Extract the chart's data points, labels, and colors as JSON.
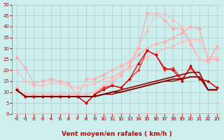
{
  "xlabel": "Vent moyen/en rafales ( km/h )",
  "xlim": [
    -0.5,
    23.5
  ],
  "ylim": [
    0,
    50
  ],
  "yticks": [
    0,
    5,
    10,
    15,
    20,
    25,
    30,
    35,
    40,
    45,
    50
  ],
  "xticks": [
    0,
    1,
    2,
    3,
    4,
    5,
    6,
    7,
    8,
    9,
    10,
    11,
    12,
    13,
    14,
    15,
    16,
    17,
    18,
    19,
    20,
    21,
    22,
    23
  ],
  "bg_color": "#cceeed",
  "grid_color": "#aacccc",
  "lines": [
    {
      "x": [
        0,
        1,
        2,
        3,
        4,
        5,
        6,
        7,
        8,
        9,
        10,
        11,
        12,
        13,
        14,
        15,
        16,
        17,
        18,
        19,
        20,
        21,
        22,
        23
      ],
      "y": [
        12,
        9,
        9,
        9,
        9,
        9,
        9,
        9,
        9,
        10,
        12,
        14,
        18,
        22,
        30,
        46,
        46,
        43,
        39,
        39,
        32,
        25,
        24,
        31
      ],
      "color": "#ffaaaa",
      "lw": 0.8,
      "marker": "D",
      "ms": 2.0
    },
    {
      "x": [
        0,
        1,
        2,
        3,
        4,
        5,
        6,
        7,
        8,
        9,
        10,
        11,
        12,
        13,
        14,
        15,
        16,
        17,
        18,
        19,
        20,
        21,
        22,
        23
      ],
      "y": [
        12,
        9,
        9,
        9,
        9,
        9,
        9,
        9,
        9,
        10,
        13,
        16,
        19,
        24,
        31,
        38,
        46,
        46,
        43,
        40,
        33,
        25,
        24,
        30
      ],
      "color": "#ffbbbb",
      "lw": 0.8,
      "marker": "D",
      "ms": 1.8
    },
    {
      "x": [
        0,
        1,
        2,
        3,
        4,
        5,
        6,
        7,
        8,
        9,
        10,
        11,
        12,
        13,
        14,
        15,
        16,
        17,
        18,
        19,
        20,
        21,
        22,
        23
      ],
      "y": [
        26,
        21,
        14,
        15,
        16,
        15,
        14,
        8,
        16,
        16,
        18,
        20,
        22,
        24,
        27,
        30,
        32,
        33,
        35,
        37,
        40,
        39,
        25,
        25
      ],
      "color": "#ffaaaa",
      "lw": 0.9,
      "marker": "D",
      "ms": 2.0
    },
    {
      "x": [
        0,
        1,
        2,
        3,
        4,
        5,
        6,
        7,
        8,
        9,
        10,
        11,
        12,
        13,
        14,
        15,
        16,
        17,
        18,
        19,
        20,
        21,
        22,
        23
      ],
      "y": [
        20,
        15,
        13,
        13,
        14,
        14,
        13,
        12,
        13,
        14,
        16,
        17,
        19,
        21,
        23,
        26,
        28,
        30,
        31,
        33,
        34,
        34,
        26,
        26
      ],
      "color": "#ffbbbb",
      "lw": 0.9,
      "marker": "D",
      "ms": 1.8
    },
    {
      "x": [
        0,
        1,
        2,
        3,
        4,
        5,
        6,
        7,
        8,
        9,
        10,
        11,
        12,
        13,
        14,
        15,
        16,
        17,
        18,
        19,
        20,
        21,
        22,
        23
      ],
      "y": [
        11,
        8,
        8,
        8,
        8,
        8,
        8,
        8,
        5,
        9,
        12,
        13,
        12,
        16,
        20,
        29,
        27,
        20,
        21,
        16,
        21,
        16,
        15,
        12
      ],
      "color": "#ff2222",
      "lw": 0.9,
      "marker": "+",
      "ms": 3.0
    },
    {
      "x": [
        0,
        1,
        2,
        3,
        4,
        5,
        6,
        7,
        8,
        9,
        10,
        11,
        12,
        13,
        14,
        15,
        16,
        17,
        18,
        19,
        20,
        21,
        22,
        23
      ],
      "y": [
        11,
        8,
        8,
        8,
        8,
        8,
        8,
        8,
        5,
        9,
        11,
        13,
        12,
        16,
        23,
        29,
        27,
        21,
        20,
        15,
        22,
        16,
        15,
        12
      ],
      "color": "#cc0000",
      "lw": 0.9,
      "marker": "s",
      "ms": 2.0
    },
    {
      "x": [
        0,
        1,
        2,
        3,
        4,
        5,
        6,
        7,
        8,
        9,
        10,
        11,
        12,
        13,
        14,
        15,
        16,
        17,
        18,
        19,
        20,
        21,
        22,
        23
      ],
      "y": [
        11,
        8,
        8,
        8,
        8,
        8,
        8,
        8,
        8,
        8,
        9,
        10,
        11,
        12,
        13,
        14,
        15,
        16,
        17,
        18,
        19,
        19,
        11,
        11
      ],
      "color": "#990000",
      "lw": 1.2,
      "marker": null,
      "ms": 0
    },
    {
      "x": [
        0,
        1,
        2,
        3,
        4,
        5,
        6,
        7,
        8,
        9,
        10,
        11,
        12,
        13,
        14,
        15,
        16,
        17,
        18,
        19,
        20,
        21,
        22,
        23
      ],
      "y": [
        11,
        8,
        8,
        8,
        8,
        8,
        8,
        8,
        8,
        8,
        9,
        10,
        10,
        11,
        12,
        13,
        14,
        15,
        16,
        16,
        17,
        17,
        11,
        11
      ],
      "color": "#770000",
      "lw": 1.2,
      "marker": null,
      "ms": 0
    },
    {
      "x": [
        0,
        1,
        2,
        3,
        4,
        5,
        6,
        7,
        8,
        9,
        10,
        11,
        12,
        13,
        14,
        15,
        16,
        17,
        18,
        19,
        20,
        21,
        22,
        23
      ],
      "y": [
        11,
        8,
        8,
        8,
        8,
        8,
        8,
        8,
        8,
        8,
        9,
        9,
        10,
        11,
        12,
        13,
        14,
        15,
        15,
        16,
        17,
        17,
        11,
        11
      ],
      "color": "#880000",
      "lw": 1.0,
      "marker": null,
      "ms": 0
    }
  ],
  "arrow_color": "#cc5555",
  "xlabel_color": "#cc0000",
  "xlabel_fontsize": 6.5,
  "tick_fontsize": 5,
  "tick_color": "#cc0000"
}
